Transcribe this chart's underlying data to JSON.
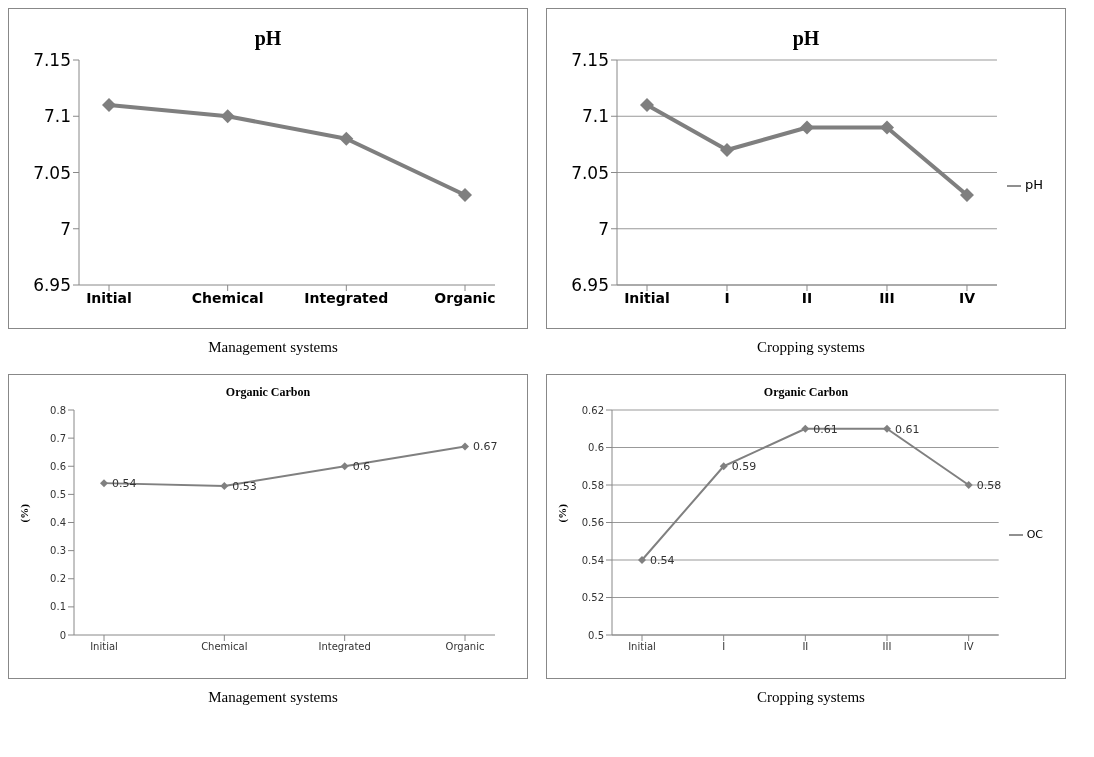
{
  "chart_data": [
    {
      "type": "line",
      "title": "pH",
      "xlabel": "Management systems",
      "categories": [
        "Initial",
        "Chemical",
        "Integrated",
        "Organic"
      ],
      "series": [
        {
          "color": "#7f7f7f",
          "values": [
            7.11,
            7.1,
            7.08,
            7.03
          ]
        }
      ],
      "ylim": [
        6.95,
        7.15
      ],
      "yticks": [
        6.95,
        7,
        7.05,
        7.1,
        7.15
      ],
      "grid": false,
      "legend": false,
      "marker": "diamond",
      "line_style": "solid"
    },
    {
      "type": "line",
      "title": "pH",
      "xlabel": "Cropping systems",
      "categories": [
        "Initial",
        "I",
        "II",
        "III",
        "IV"
      ],
      "series": [
        {
          "name": "pH",
          "color": "#7f7f7f",
          "values": [
            7.11,
            7.07,
            7.09,
            7.09,
            7.03
          ]
        }
      ],
      "ylim": [
        6.95,
        7.15
      ],
      "yticks": [
        6.95,
        7,
        7.05,
        7.1,
        7.15
      ],
      "grid": "y",
      "legend": "right",
      "marker": "diamond",
      "line_style": "solid"
    },
    {
      "type": "line",
      "title": "Organic Carbon",
      "xlabel": "Management systems",
      "ylabel": "(%)",
      "categories": [
        "Initial",
        "Chemical",
        "Integrated",
        "Organic"
      ],
      "series": [
        {
          "color": "#808080",
          "values": [
            0.54,
            0.53,
            0.6,
            0.67
          ]
        }
      ],
      "ylim": [
        0,
        0.8
      ],
      "yticks": [
        0,
        0.1,
        0.2,
        0.3,
        0.4,
        0.5,
        0.6,
        0.7,
        0.8
      ],
      "grid": false,
      "legend": false,
      "marker": "diamond",
      "line_style": "solid",
      "data_labels": true
    },
    {
      "type": "line",
      "title": "Organic Carbon",
      "xlabel": "Cropping systems",
      "ylabel": "(%)",
      "categories": [
        "Initial",
        "I",
        "II",
        "III",
        "IV"
      ],
      "series": [
        {
          "name": "OC",
          "color": "#808080",
          "values": [
            0.54,
            0.59,
            0.61,
            0.61,
            0.58
          ]
        }
      ],
      "ylim": [
        0.5,
        0.62
      ],
      "yticks": [
        0.5,
        0.52,
        0.54,
        0.56,
        0.58,
        0.6,
        0.62
      ],
      "grid": "y",
      "legend": "right",
      "marker": "diamond",
      "line_style": "solid",
      "data_labels": true
    }
  ]
}
